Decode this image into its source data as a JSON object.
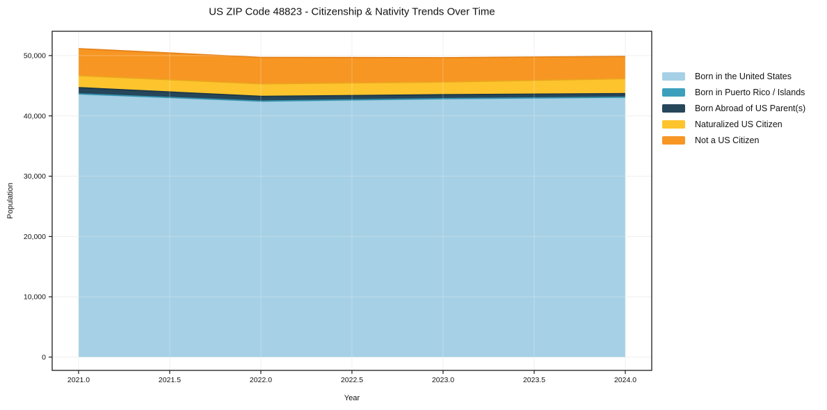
{
  "window": {
    "title": "US ZIP Code 48823 - Citizenship & Nativity Trends Over Time"
  },
  "colors": {
    "background": "#ffffff",
    "spine": "#1a1a1a",
    "grid_under": "#e9e9e9",
    "grid_over": "rgba(255,255,255,0.28)",
    "text": "#111111"
  },
  "chart_data": {
    "type": "area",
    "stacked": true,
    "title": "US ZIP Code 48823 - Citizenship & Nativity Trends Over Time",
    "xlabel": "Year",
    "ylabel": "Population",
    "grid": true,
    "legend_position": "right",
    "x": [
      2021,
      2022,
      2023,
      2024
    ],
    "series": [
      {
        "name": "Born in the United States",
        "color": "#A6D0E5",
        "edge": "#8FC1DB",
        "values": [
          43600,
          42400,
          42800,
          43050
        ]
      },
      {
        "name": "Born in Puerto Rico / Islands",
        "color": "#3CA0BC",
        "edge": "#3391AD",
        "values": [
          60,
          60,
          60,
          60
        ]
      },
      {
        "name": "Born Abroad of US Parent(s)",
        "color": "#26465A",
        "edge": "#1C3848",
        "values": [
          1030,
          770,
          650,
          580
        ]
      },
      {
        "name": "Naturalized US Citizen",
        "color": "#FDC42D",
        "edge": "#ECA51E",
        "values": [
          1990,
          2090,
          2110,
          2480
        ]
      },
      {
        "name": "Not a US Citizen",
        "color": "#F79623",
        "edge": "#E5831A",
        "values": [
          4470,
          4380,
          4030,
          3690
        ]
      }
    ],
    "totals": [
      51150,
      49700,
      49650,
      49860
    ],
    "xticks": [
      2021.0,
      2021.5,
      2022.0,
      2022.5,
      2023.0,
      2023.5,
      2024.0
    ],
    "xtick_labels": [
      "2021.0",
      "2021.5",
      "2022.0",
      "2022.5",
      "2023.0",
      "2023.5",
      "2024.0"
    ],
    "yticks": [
      0,
      10000,
      20000,
      30000,
      40000,
      50000
    ],
    "ytick_labels": [
      "0",
      "10,000",
      "20,000",
      "30,000",
      "40,000",
      "50,000"
    ],
    "xlim": [
      2020.855,
      2024.145
    ],
    "ylim": [
      -2200,
      54030
    ]
  }
}
